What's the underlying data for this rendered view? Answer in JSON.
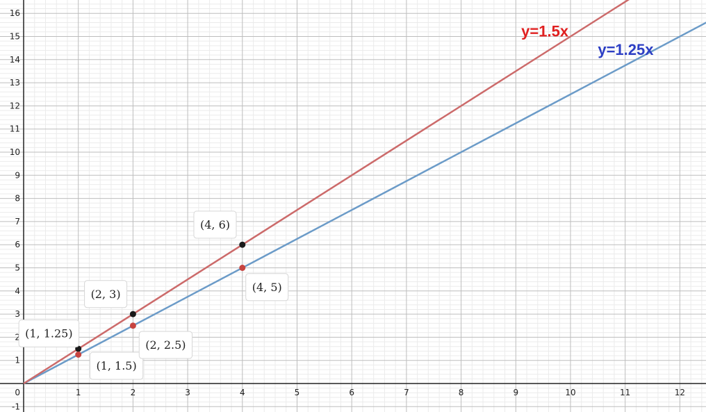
{
  "chart_data": {
    "type": "line",
    "title": "",
    "xlabel": "",
    "ylabel": "",
    "xlim": [
      0,
      12.5
    ],
    "ylim": [
      -1.2,
      16.7
    ],
    "x_ticks": [
      "1",
      "2",
      "3",
      "4",
      "5",
      "6",
      "7",
      "8",
      "9",
      "10",
      "11",
      "12"
    ],
    "y_ticks": [
      "-1",
      "1",
      "2",
      "3",
      "4",
      "5",
      "6",
      "7",
      "8",
      "9",
      "10",
      "11",
      "12",
      "13",
      "14",
      "15",
      "16"
    ],
    "origin_label": "0",
    "grid": true,
    "minor_grid_step": 0.2,
    "series": [
      {
        "name": "y=1.5x",
        "slope": 1.5,
        "line_color": "#cc6a6a",
        "label_color": "#e02020"
      },
      {
        "name": "y=1.25x",
        "slope": 1.25,
        "line_color": "#6b9bc8",
        "label_color": "#2d3fc4"
      }
    ],
    "points": [
      {
        "x": 1,
        "y": 1.5,
        "series": "y=1.5x",
        "color": "#1a1a1a",
        "label": "(1, 1.5)"
      },
      {
        "x": 2,
        "y": 3,
        "series": "y=1.5x",
        "color": "#1a1a1a",
        "label": "(2, 3)"
      },
      {
        "x": 4,
        "y": 6,
        "series": "y=1.5x",
        "color": "#1a1a1a",
        "label": "(4, 6)"
      },
      {
        "x": 1,
        "y": 1.25,
        "series": "y=1.25x",
        "color": "#c74440",
        "label": "(1, 1.25)"
      },
      {
        "x": 2,
        "y": 2.5,
        "series": "y=1.25x",
        "color": "#c74440",
        "label": "(2, 2.5)"
      },
      {
        "x": 4,
        "y": 5,
        "series": "y=1.25x",
        "color": "#c74440",
        "label": "(4, 5)"
      }
    ]
  }
}
